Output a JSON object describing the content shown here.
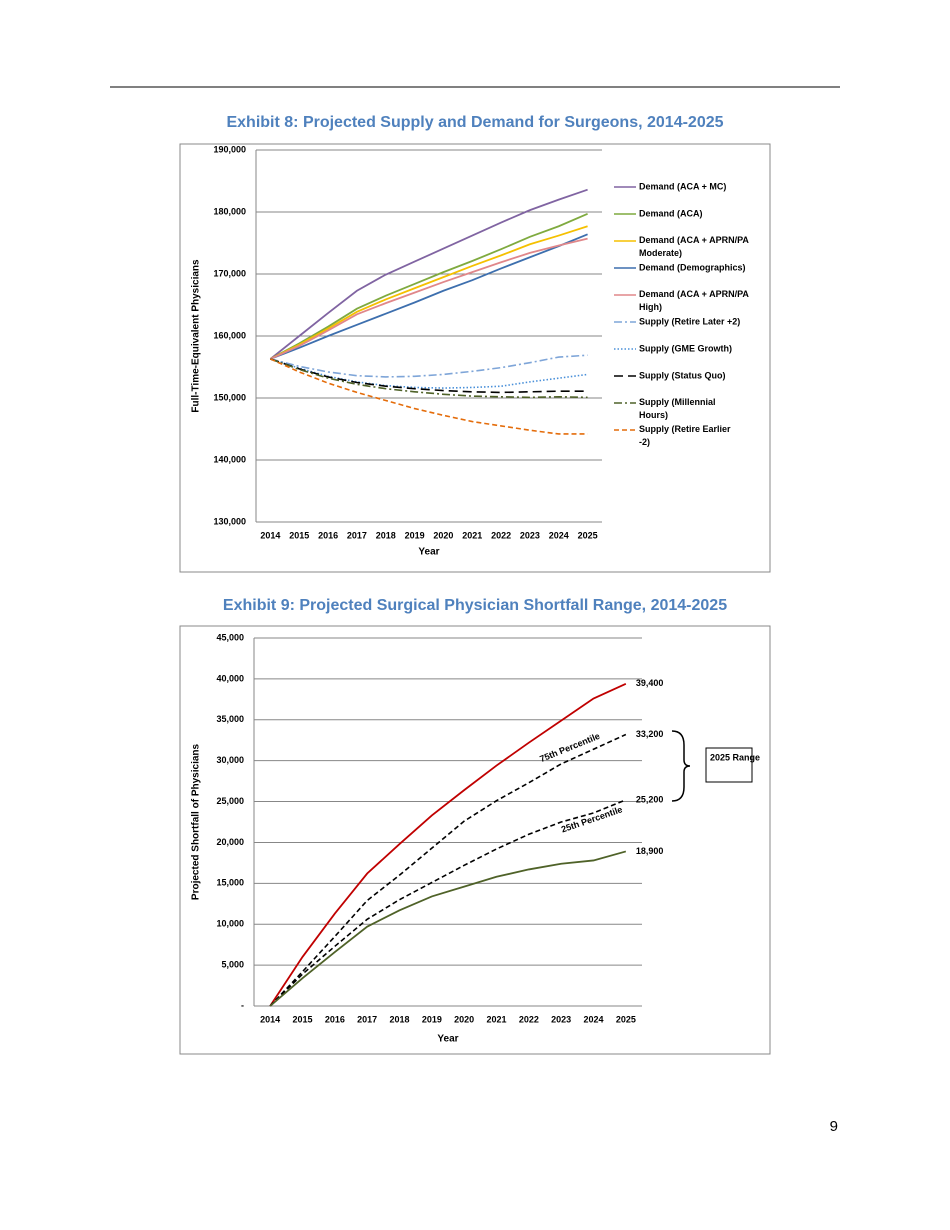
{
  "page_number": 9,
  "chart_data": [
    {
      "type": "line",
      "title": "Exhibit 8: Projected Supply and Demand for Surgeons, 2014-2025",
      "x_label": "Year",
      "y_label": "Full-Time-Equivalent Physicians",
      "categories": [
        "2014",
        "2015",
        "2016",
        "2017",
        "2018",
        "2019",
        "2020",
        "2021",
        "2022",
        "2023",
        "2024",
        "2025"
      ],
      "ylim": [
        130000,
        190000
      ],
      "yticks": [
        {
          "value": 130000,
          "label": "130,000"
        },
        {
          "value": 140000,
          "label": "140,000"
        },
        {
          "value": 150000,
          "label": "150,000"
        },
        {
          "value": 160000,
          "label": "160,000"
        },
        {
          "value": 170000,
          "label": "170,000"
        },
        {
          "value": 180000,
          "label": "180,000"
        },
        {
          "value": 190000,
          "label": "190,000"
        }
      ],
      "grid": true,
      "legend": "right",
      "series": [
        {
          "name": "Demand (ACA + MC)",
          "color": "#8064a2",
          "style": "solid",
          "values": [
            156300,
            160000,
            163700,
            167300,
            169900,
            172000,
            174100,
            176200,
            178300,
            180300,
            182000,
            183600
          ]
        },
        {
          "name": "Demand (ACA)",
          "color": "#7faa3f",
          "style": "solid",
          "values": [
            156300,
            158800,
            161500,
            164400,
            166500,
            168400,
            170300,
            172100,
            174000,
            176000,
            177700,
            179700
          ]
        },
        {
          "name": "Demand (ACA + APRN/PA Moderate)",
          "color": "#f5c000",
          "style": "solid",
          "values": [
            156300,
            158600,
            161200,
            163900,
            165900,
            167700,
            169500,
            171300,
            173000,
            174800,
            176200,
            177700
          ]
        },
        {
          "name": "Demand (Demographics)",
          "color": "#3d6fae",
          "style": "solid",
          "values": [
            156300,
            158100,
            160000,
            161800,
            163600,
            165400,
            167300,
            169000,
            170900,
            172700,
            174500,
            176400
          ]
        },
        {
          "name": "Demand (ACA + APRN/PA High)",
          "color": "#e0878a",
          "style": "solid",
          "values": [
            156300,
            158400,
            160900,
            163500,
            165300,
            167000,
            168700,
            170300,
            171900,
            173400,
            174600,
            175700
          ]
        },
        {
          "name": "Supply (Retire Later +2)",
          "color": "#7ea5d8",
          "style": "dashdot",
          "values": [
            156300,
            155100,
            154200,
            153600,
            153400,
            153500,
            153800,
            154300,
            154900,
            155700,
            156600,
            156900
          ]
        },
        {
          "name": "Supply (GME Growth)",
          "color": "#4a90d9",
          "style": "dot",
          "values": [
            156300,
            154800,
            153500,
            152600,
            152000,
            151700,
            151600,
            151700,
            151900,
            152600,
            153200,
            153800
          ]
        },
        {
          "name": "Supply (Status Quo)",
          "color": "#000000",
          "style": "longdash",
          "values": [
            156300,
            154700,
            153400,
            152500,
            151900,
            151500,
            151200,
            151000,
            150900,
            151000,
            151100,
            151100
          ]
        },
        {
          "name": "Supply (Millennial Hours)",
          "color": "#4f6228",
          "style": "dashdot",
          "values": [
            156300,
            154600,
            153200,
            152200,
            151500,
            151000,
            150600,
            150300,
            150200,
            150100,
            150200,
            150100
          ]
        },
        {
          "name": "Supply (Retire Earlier -2)",
          "color": "#e46c0a",
          "style": "dash",
          "values": [
            156300,
            154200,
            152400,
            150900,
            149600,
            148300,
            147200,
            146200,
            145500,
            144800,
            144200,
            144200
          ]
        }
      ]
    },
    {
      "type": "line",
      "title": "Exhibit 9: Projected Surgical Physician Shortfall Range, 2014-2025",
      "x_label": "Year",
      "y_label": "Projected Shortfall of Physicians",
      "categories": [
        "2014",
        "2015",
        "2016",
        "2017",
        "2018",
        "2019",
        "2020",
        "2021",
        "2022",
        "2023",
        "2024",
        "2025"
      ],
      "ylim": [
        0,
        45000
      ],
      "yticks": [
        {
          "value": 0,
          "label": "-"
        },
        {
          "value": 5000,
          "label": "5,000"
        },
        {
          "value": 10000,
          "label": "10,000"
        },
        {
          "value": 15000,
          "label": "15,000"
        },
        {
          "value": 20000,
          "label": "20,000"
        },
        {
          "value": 25000,
          "label": "25,000"
        },
        {
          "value": 30000,
          "label": "30,000"
        },
        {
          "value": 35000,
          "label": "35,000"
        },
        {
          "value": 40000,
          "label": "40,000"
        },
        {
          "value": 45000,
          "label": "45,000"
        }
      ],
      "grid": true,
      "range_label": "2025 Range",
      "series": [
        {
          "color": "#c00000",
          "style": "solid",
          "values": [
            0,
            6000,
            11300,
            16200,
            19800,
            23300,
            26400,
            29400,
            32200,
            34900,
            37600,
            39400
          ],
          "value_labels": [
            null,
            null,
            null,
            null,
            null,
            null,
            null,
            null,
            null,
            null,
            null,
            "39,400"
          ]
        },
        {
          "name": "75th Percentile",
          "color": "#000000",
          "style": "dash",
          "values": [
            0,
            4200,
            8500,
            12900,
            16000,
            19300,
            22600,
            25100,
            27300,
            29600,
            31400,
            33200
          ],
          "value_labels": [
            null,
            null,
            null,
            null,
            null,
            null,
            null,
            null,
            null,
            null,
            null,
            "33,200"
          ]
        },
        {
          "name": "25th Percentile",
          "color": "#000000",
          "style": "dash",
          "values": [
            0,
            3900,
            7300,
            10600,
            13000,
            15100,
            17200,
            19200,
            21000,
            22500,
            23600,
            25200
          ],
          "value_labels": [
            null,
            null,
            null,
            null,
            null,
            null,
            null,
            null,
            null,
            null,
            null,
            "25,200"
          ]
        },
        {
          "color": "#4f6228",
          "style": "solid",
          "values": [
            0,
            3400,
            6600,
            9700,
            11700,
            13400,
            14600,
            15800,
            16700,
            17400,
            17800,
            18900
          ],
          "value_labels": [
            null,
            null,
            null,
            null,
            null,
            null,
            null,
            null,
            null,
            null,
            null,
            "18,900"
          ]
        }
      ]
    }
  ]
}
